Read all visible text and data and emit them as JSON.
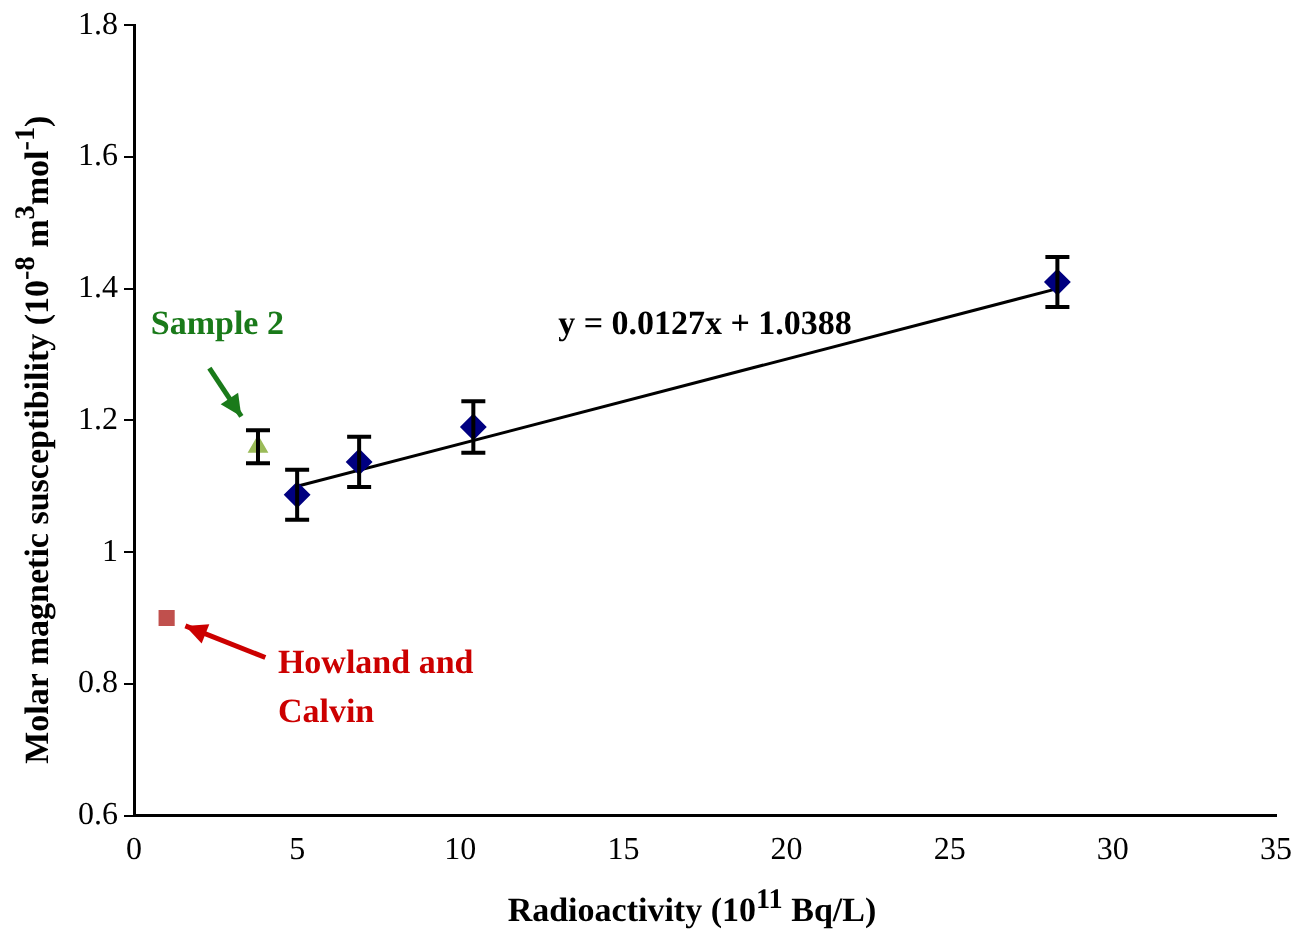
{
  "chart_data": {
    "type": "scatter",
    "xlabel": "Radioactivity (10$^{11}$ Bq/L)",
    "ylabel": "Molar magnetic susceptibility (10$^{-8}$ m$^{3}$mol$^{-1}$)",
    "xlim": [
      0,
      35
    ],
    "xticks": [
      0,
      5,
      10,
      15,
      20,
      25,
      30,
      35
    ],
    "ylim": [
      0.6,
      1.8
    ],
    "yticks": [
      0.6,
      0.8,
      1,
      1.2,
      1.4,
      1.6,
      1.8
    ],
    "grid": false,
    "legend": false,
    "series": [
      {
        "color": "#000080",
        "marker": "diamond",
        "x": [
          5.0,
          6.9,
          10.4,
          28.3
        ],
        "values": [
          1.087,
          1.137,
          1.19,
          1.41
        ],
        "errors": [
          0.038,
          0.038,
          0.039,
          0.038
        ]
      },
      {
        "color": "#9bbb59",
        "marker": "triangle",
        "x": [
          3.8
        ],
        "values": [
          1.16
        ],
        "errors": [
          0.025
        ]
      },
      {
        "color": "#c0504d",
        "marker": "square",
        "x": [
          1
        ],
        "values": [
          0.9
        ]
      },
      {
        "type": "line",
        "color": "#000000",
        "marker": "none",
        "line_style": "solid",
        "x": [
          5.0,
          28.3
        ],
        "values": [
          1.1,
          1.4
        ]
      }
    ],
    "annotations": [
      "y = 0.0127x + 1.0388",
      "Sample 2",
      "Howland and Calvin"
    ]
  }
}
